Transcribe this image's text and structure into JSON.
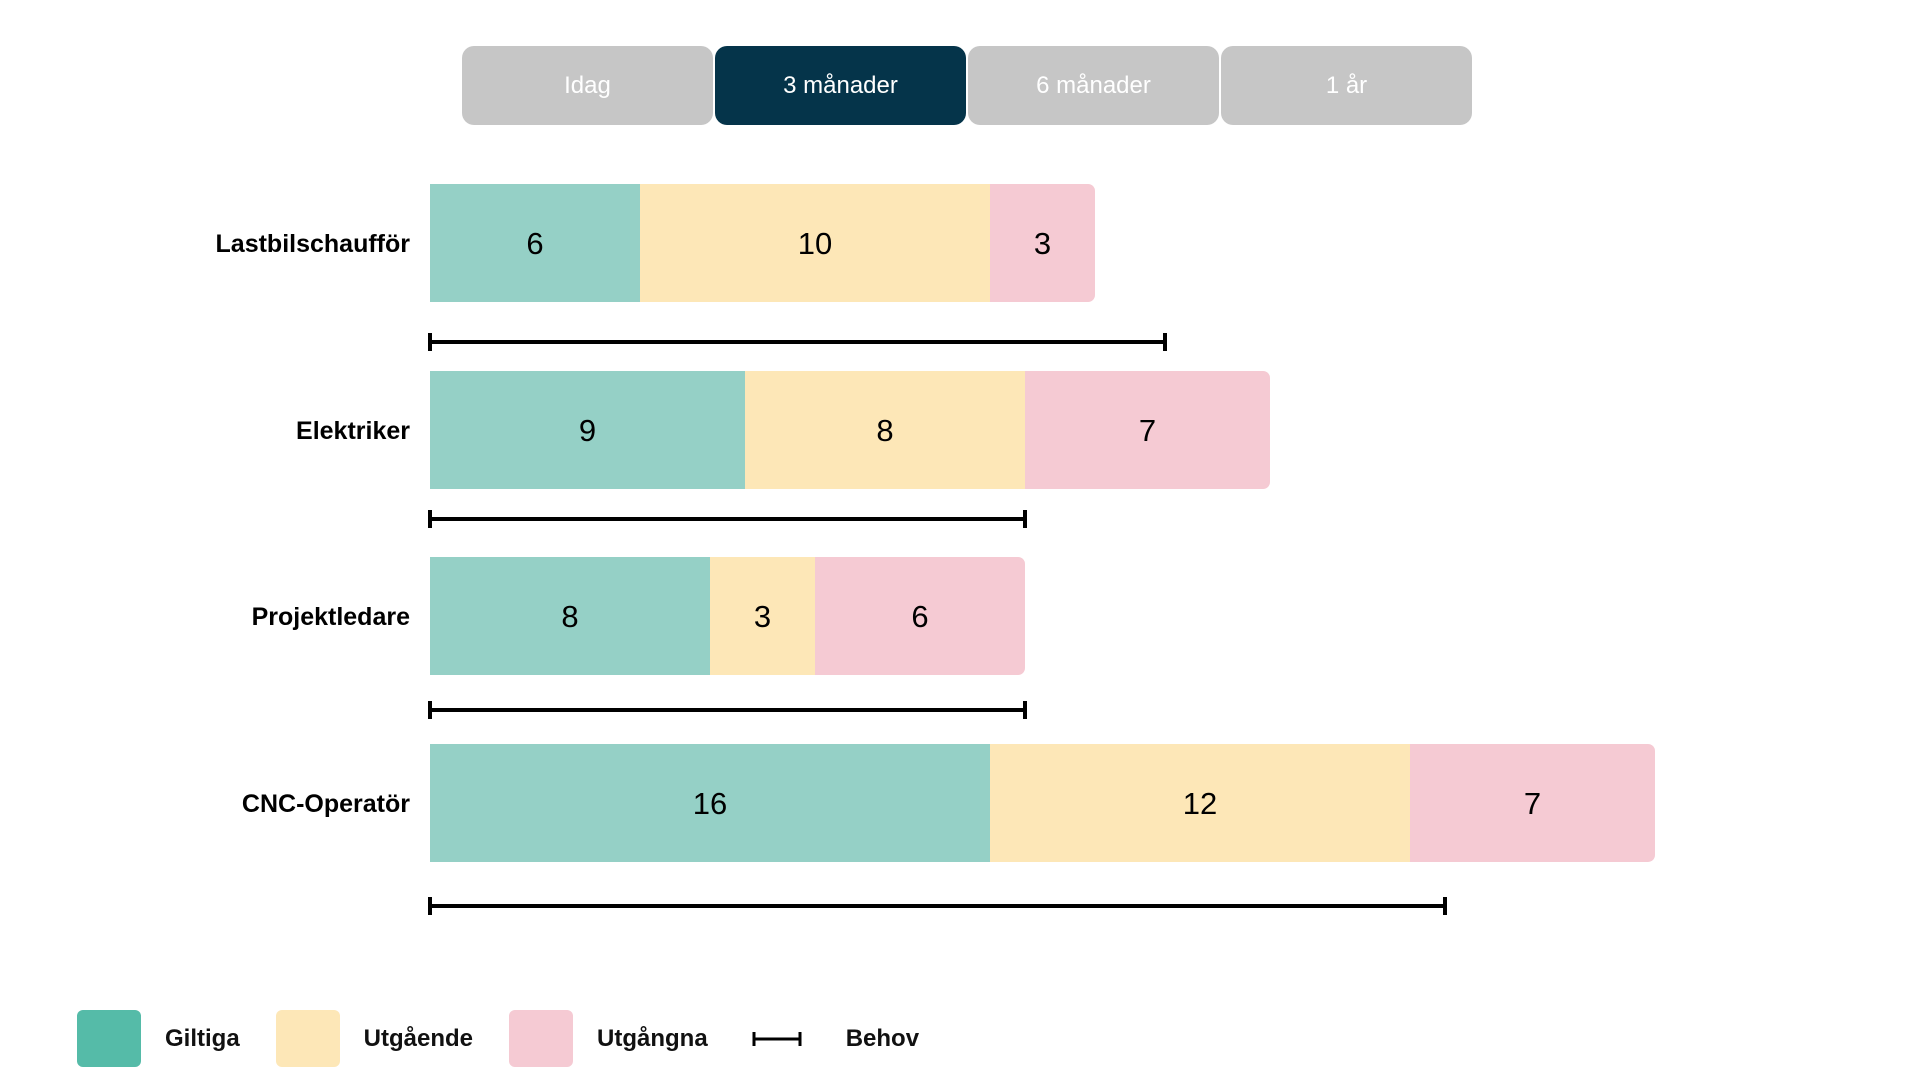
{
  "tabs": [
    {
      "label": "Idag",
      "active": false
    },
    {
      "label": "3 månader",
      "active": true
    },
    {
      "label": "6 månader",
      "active": false
    },
    {
      "label": "1 år",
      "active": false
    }
  ],
  "colors": {
    "giltiga": "#95d0c6",
    "utgaende": "#fde7b7",
    "utgangna": "#f5cad3",
    "giltiga_legend": "#55bba8",
    "behov": "#000000",
    "tab_active": "#05344a",
    "tab_inactive": "#c6c6c6"
  },
  "legend": {
    "giltiga": "Giltiga",
    "utgaende": "Utgående",
    "utgangna": "Utgångna",
    "behov": "Behov"
  },
  "chart_data": {
    "type": "bar",
    "orientation": "horizontal",
    "stacked": true,
    "categories": [
      "Lastbilschaufför",
      "Elektriker",
      "Projektledare",
      "CNC-Operatör"
    ],
    "series": [
      {
        "name": "Giltiga",
        "values": [
          6,
          9,
          8,
          16
        ]
      },
      {
        "name": "Utgående",
        "values": [
          10,
          8,
          3,
          12
        ]
      },
      {
        "name": "Utgångna",
        "values": [
          3,
          7,
          6,
          7
        ]
      }
    ],
    "behov": [
      21,
      17,
      17,
      29
    ],
    "title": "",
    "xlabel": "",
    "ylabel": "",
    "legend_position": "bottom-left",
    "grid": false
  }
}
